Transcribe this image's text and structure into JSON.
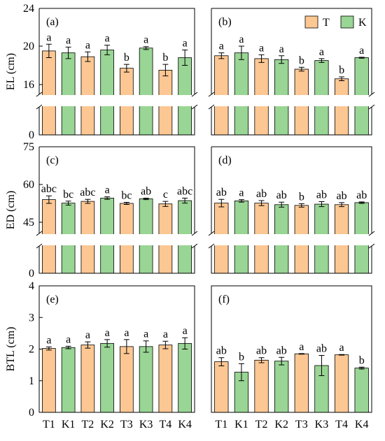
{
  "colors": {
    "T": "#fcc793",
    "K": "#99d594",
    "break_band": "#ffffff"
  },
  "legend": {
    "items": [
      {
        "label": "T",
        "color_key": "T"
      },
      {
        "label": "K",
        "color_key": "K"
      }
    ]
  },
  "chart_data": [
    {
      "id": "a",
      "type": "bar",
      "panel_label": "(a)",
      "ylabel": "EL (cm)",
      "categories": [
        "T1",
        "K1",
        "T2",
        "K2",
        "T3",
        "K3",
        "T4",
        "K4"
      ],
      "values": [
        19.5,
        19.3,
        18.9,
        19.6,
        17.7,
        19.8,
        17.5,
        18.8
      ],
      "errors": [
        0.7,
        0.6,
        0.5,
        0.5,
        0.4,
        0.15,
        0.6,
        0.8
      ],
      "letters": [
        "a",
        "a",
        "a",
        "a",
        "b",
        "a",
        "b",
        "a"
      ],
      "groups": [
        "T",
        "K",
        "T",
        "K",
        "T",
        "K",
        "T",
        "K"
      ],
      "ylim": [
        0,
        24
      ],
      "yticks": [
        "0",
        "16",
        "20",
        "24"
      ],
      "axis_break": [
        1,
        15
      ],
      "show_yticks": true,
      "show_xticks": false
    },
    {
      "id": "b",
      "type": "bar",
      "panel_label": "(b)",
      "ylabel": "",
      "categories": [
        "T1",
        "K1",
        "T2",
        "K2",
        "T3",
        "K3",
        "T4",
        "K4"
      ],
      "values": [
        19.0,
        19.3,
        18.7,
        18.6,
        17.6,
        18.5,
        16.6,
        18.8
      ],
      "errors": [
        0.3,
        0.7,
        0.4,
        0.4,
        0.2,
        0.2,
        0.2,
        0.05
      ],
      "letters": [
        "a",
        "a",
        "a",
        "a",
        "b",
        "a",
        "b",
        "a"
      ],
      "groups": [
        "T",
        "K",
        "T",
        "K",
        "T",
        "K",
        "T",
        "K"
      ],
      "ylim": [
        0,
        24
      ],
      "yticks": [],
      "axis_break": [
        1,
        15
      ],
      "show_yticks": false,
      "show_xticks": false
    },
    {
      "id": "c",
      "type": "bar",
      "panel_label": "(c)",
      "ylabel": "ED (cm)",
      "categories": [
        "T1",
        "K1",
        "T2",
        "K2",
        "T3",
        "K3",
        "T4",
        "K4"
      ],
      "values": [
        54.0,
        52.6,
        53.3,
        54.6,
        52.5,
        54.3,
        52.3,
        53.6
      ],
      "errors": [
        1.5,
        0.8,
        0.8,
        0.5,
        0.4,
        0.3,
        1.0,
        1.0
      ],
      "letters": [
        "abc",
        "bc",
        "abc",
        "a",
        "bc",
        "ab",
        "c",
        "abc"
      ],
      "groups": [
        "T",
        "K",
        "T",
        "K",
        "T",
        "K",
        "T",
        "K"
      ],
      "ylim": [
        0,
        75
      ],
      "yticks": [
        "0",
        "45",
        "60",
        "75"
      ],
      "axis_break": [
        5,
        40
      ],
      "show_yticks": true,
      "show_xticks": false
    },
    {
      "id": "d",
      "type": "bar",
      "panel_label": "(d)",
      "ylabel": "",
      "categories": [
        "T1",
        "K1",
        "T2",
        "K2",
        "T3",
        "K3",
        "T4",
        "K4"
      ],
      "values": [
        52.6,
        53.5,
        52.6,
        52.0,
        51.7,
        52.2,
        52.0,
        52.8
      ],
      "errors": [
        1.5,
        0.5,
        1.0,
        1.0,
        0.7,
        1.0,
        0.8,
        0.3
      ],
      "letters": [
        "ab",
        "a",
        "ab",
        "ab",
        "b",
        "ab",
        "ab",
        "ab"
      ],
      "groups": [
        "T",
        "K",
        "T",
        "K",
        "T",
        "K",
        "T",
        "K"
      ],
      "ylim": [
        0,
        75
      ],
      "yticks": [],
      "axis_break": [
        5,
        40
      ],
      "show_yticks": false,
      "show_xticks": false
    },
    {
      "id": "e",
      "type": "bar",
      "panel_label": "(e)",
      "ylabel": "BTL (cm)",
      "categories": [
        "T1",
        "K1",
        "T2",
        "K2",
        "T3",
        "K3",
        "T4",
        "K4"
      ],
      "values": [
        2.02,
        2.05,
        2.13,
        2.18,
        2.08,
        2.08,
        2.13,
        2.18
      ],
      "errors": [
        0.05,
        0.04,
        0.1,
        0.12,
        0.22,
        0.18,
        0.12,
        0.18
      ],
      "letters": [
        "a",
        "a",
        "a",
        "a",
        "a",
        "a",
        "a",
        "a"
      ],
      "groups": [
        "T",
        "K",
        "T",
        "K",
        "T",
        "K",
        "T",
        "K"
      ],
      "ylim": [
        0,
        4
      ],
      "yticks": [
        "0",
        "1",
        "2",
        "3",
        "4"
      ],
      "axis_break": null,
      "show_yticks": true,
      "show_xticks": true
    },
    {
      "id": "f",
      "type": "bar",
      "panel_label": "(f)",
      "ylabel": "",
      "categories": [
        "T1",
        "K1",
        "T2",
        "K2",
        "T3",
        "K3",
        "T4",
        "K4"
      ],
      "values": [
        1.6,
        1.27,
        1.65,
        1.62,
        1.85,
        1.48,
        1.82,
        1.4
      ],
      "errors": [
        0.13,
        0.27,
        0.08,
        0.12,
        0.01,
        0.32,
        0.01,
        0.03
      ],
      "letters": [
        "ab",
        "b",
        "ab",
        "ab",
        "a",
        "ab",
        "a",
        "b"
      ],
      "groups": [
        "T",
        "K",
        "T",
        "K",
        "T",
        "K",
        "T",
        "K"
      ],
      "ylim": [
        0,
        4
      ],
      "yticks": [],
      "axis_break": null,
      "show_yticks": false,
      "show_xticks": true
    }
  ]
}
